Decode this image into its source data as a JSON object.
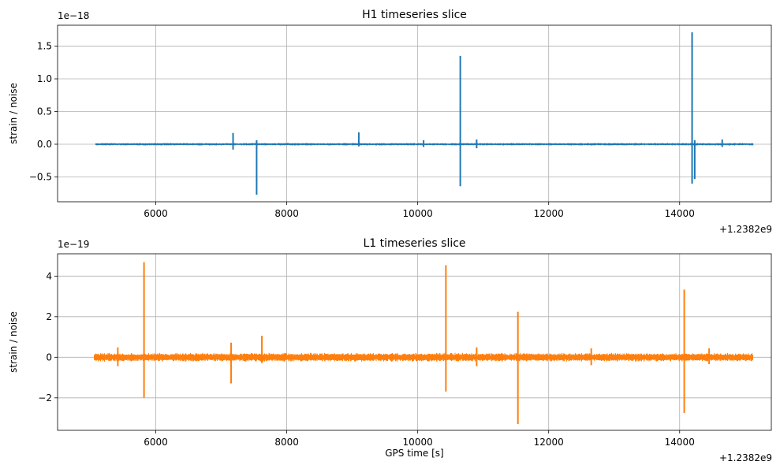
{
  "chart_data": [
    {
      "type": "line",
      "title": "H1 timeseries slice",
      "xlabel": "",
      "ylabel": "strain / noise",
      "x_offset_label": "+1.2382e9",
      "y_exponent_label": "1e−18",
      "xlim": [
        4500,
        15400
      ],
      "ylim": [
        -0.88,
        1.82
      ],
      "xticks": [
        6000,
        8000,
        10000,
        12000,
        14000
      ],
      "xtick_labels": [
        "6000",
        "8000",
        "10000",
        "12000",
        "14000"
      ],
      "yticks": [
        -0.5,
        0.0,
        0.5,
        1.0,
        1.5
      ],
      "ytick_labels": [
        "−0.5",
        "0.0",
        "0.5",
        "1.0",
        "1.5"
      ],
      "grid": true,
      "color": "#1f77b4",
      "x_range": [
        5080,
        15120
      ],
      "noise_amplitude": 0.02,
      "spikes": [
        {
          "x": 7180,
          "max": 0.16,
          "min": -0.07
        },
        {
          "x": 7540,
          "max": 0.05,
          "min": -0.76
        },
        {
          "x": 9100,
          "max": 0.17,
          "min": -0.02
        },
        {
          "x": 10090,
          "max": 0.05,
          "min": -0.03
        },
        {
          "x": 10650,
          "max": 1.34,
          "min": -0.63
        },
        {
          "x": 10900,
          "max": 0.06,
          "min": -0.05
        },
        {
          "x": 14190,
          "max": 1.7,
          "min": -0.59
        },
        {
          "x": 14230,
          "max": 0.05,
          "min": -0.52
        },
        {
          "x": 14650,
          "max": 0.06,
          "min": -0.03
        }
      ]
    },
    {
      "type": "line",
      "title": "L1 timeseries slice",
      "xlabel": "GPS time [s]",
      "ylabel": "strain / noise",
      "x_offset_label": "+1.2382e9",
      "y_exponent_label": "1e−19",
      "xlim": [
        4500,
        15400
      ],
      "ylim": [
        -3.6,
        5.1
      ],
      "xticks": [
        6000,
        8000,
        10000,
        12000,
        14000
      ],
      "xtick_labels": [
        "6000",
        "8000",
        "10000",
        "12000",
        "14000"
      ],
      "yticks": [
        -2,
        0,
        2,
        4
      ],
      "ytick_labels": [
        "−2",
        "0",
        "2",
        "4"
      ],
      "grid": true,
      "color": "#ff7f0e",
      "x_range": [
        5060,
        15120
      ],
      "noise_amplitude": 0.22,
      "spikes": [
        {
          "x": 5420,
          "max": 0.45,
          "min": -0.4
        },
        {
          "x": 5820,
          "max": 4.65,
          "min": -1.95
        },
        {
          "x": 7150,
          "max": 0.68,
          "min": -1.25
        },
        {
          "x": 7620,
          "max": 1.02,
          "min": -0.25
        },
        {
          "x": 10430,
          "max": 4.5,
          "min": -1.65
        },
        {
          "x": 10900,
          "max": 0.45,
          "min": -0.4
        },
        {
          "x": 11530,
          "max": 2.2,
          "min": -3.25
        },
        {
          "x": 12650,
          "max": 0.4,
          "min": -0.35
        },
        {
          "x": 14070,
          "max": 3.3,
          "min": -2.7
        },
        {
          "x": 14450,
          "max": 0.4,
          "min": -0.3
        }
      ]
    }
  ]
}
